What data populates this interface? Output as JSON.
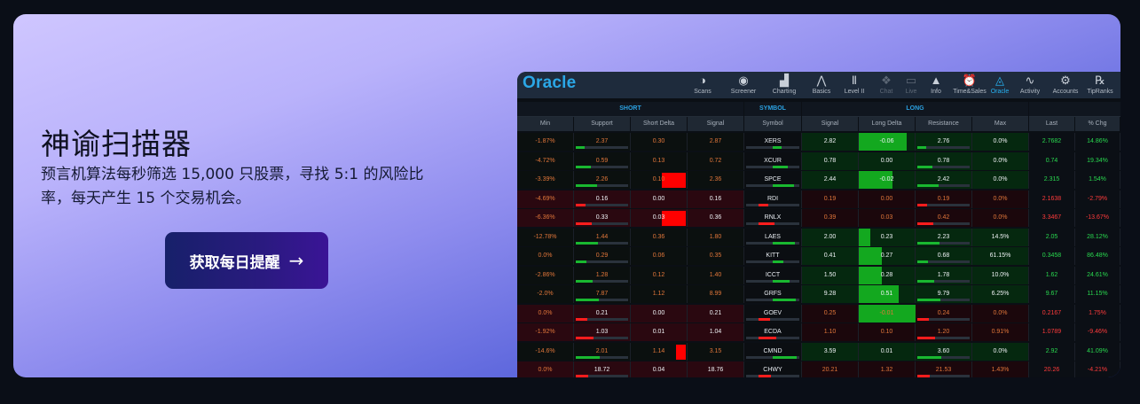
{
  "banner": {
    "title": "神谕扫描器",
    "subtitle": "预言机算法每秒筛选 15,000 只股票，寻找 5:1 的风险比率，每天产生 15 个交易机会。",
    "cta_label": "获取每日提醒",
    "cta_icon": "arrow-right-icon",
    "colors": {
      "cta_bg": "#1d1a6e",
      "accent": "#2ba7e6",
      "gain": "#29d94f",
      "loss": "#ff3b3b"
    }
  },
  "app": {
    "logo": "Oracle",
    "nav": [
      {
        "label": "Scans",
        "icon": "half-circle-icon"
      },
      {
        "label": "Screener",
        "icon": "eye-icon"
      },
      {
        "label": "Charting",
        "icon": "bar-chart-icon"
      },
      {
        "label": "Basics",
        "icon": "compass-icon"
      },
      {
        "label": "Level II",
        "icon": "level-two-icon"
      },
      {
        "label": "Chat",
        "icon": "chat-icon",
        "state": "disabled"
      },
      {
        "label": "Live",
        "icon": "live-icon",
        "state": "disabled"
      },
      {
        "label": "Info",
        "icon": "info-triangle-icon"
      },
      {
        "label": "Time&Sales",
        "icon": "clock-icon"
      },
      {
        "label": "Oracle",
        "icon": "pyramid-eye-icon",
        "state": "active"
      },
      {
        "label": "Activity",
        "icon": "pulse-icon"
      },
      {
        "label": "Accounts",
        "icon": "accounts-icon"
      },
      {
        "label": "TipRanks",
        "icon": "tipranks-icon"
      }
    ],
    "groups": {
      "short": "SHORT",
      "symbol": "SYMBOL",
      "long": "LONG"
    },
    "columns": [
      "Min",
      "Support",
      "Short Delta",
      "Signal",
      "Symbol",
      "Signal",
      "Long Delta",
      "Resistance",
      "Max",
      "Last",
      "% Chg"
    ],
    "rows": [
      {
        "trend": "pos",
        "cells": [
          "-1.87%",
          "2.37",
          "0.30",
          "2.87",
          "XERS",
          "2.82",
          "-0.06",
          "2.76",
          "0.0%",
          "2.7682",
          "14.86%"
        ],
        "long_delta_fill": 0.85
      },
      {
        "trend": "pos",
        "cells": [
          "-4.72%",
          "0.59",
          "0.13",
          "0.72",
          "XCUR",
          "0.78",
          "0.00",
          "0.78",
          "0.0%",
          "0.74",
          "19.34%"
        ]
      },
      {
        "trend": "pos",
        "cells": [
          "-3.39%",
          "2.26",
          "0.10",
          "2.36",
          "SPCE",
          "2.44",
          "-0.02",
          "2.42",
          "0.0%",
          "2.315",
          "1.54%"
        ],
        "short_delta_fill": 0.45,
        "long_delta_fill": 0.6
      },
      {
        "trend": "neg",
        "cells": [
          "-4.69%",
          "0.16",
          "0.00",
          "0.16",
          "RDI",
          "0.19",
          "0.00",
          "0.19",
          "0.0%",
          "2.1638",
          "-2.79%"
        ]
      },
      {
        "trend": "neg",
        "cells": [
          "-6.36%",
          "0.33",
          "0.03",
          "0.36",
          "RNLX",
          "0.39",
          "0.03",
          "0.42",
          "0.0%",
          "3.3467",
          "-13.67%"
        ],
        "short_delta_fill": 0.45
      },
      {
        "trend": "pos",
        "cells": [
          "-12.78%",
          "1.44",
          "0.36",
          "1.80",
          "LAES",
          "2.00",
          "0.23",
          "2.23",
          "14.5%",
          "2.05",
          "28.12%"
        ],
        "long_delta_fill": 0.2
      },
      {
        "trend": "pos",
        "cells": [
          "0.0%",
          "0.29",
          "0.06",
          "0.35",
          "KITT",
          "0.41",
          "0.27",
          "0.68",
          "61.15%",
          "0.3458",
          "86.48%"
        ],
        "long_delta_fill": 0.4
      },
      {
        "trend": "pos",
        "cells": [
          "-2.86%",
          "1.28",
          "0.12",
          "1.40",
          "ICCT",
          "1.50",
          "0.28",
          "1.78",
          "10.0%",
          "1.62",
          "24.61%"
        ],
        "long_delta_fill": 0.4
      },
      {
        "trend": "pos",
        "cells": [
          "-2.0%",
          "7.87",
          "1.12",
          "8.99",
          "GRFS",
          "9.28",
          "0.51",
          "9.79",
          "6.25%",
          "9.67",
          "11.15%"
        ],
        "long_delta_fill": 0.7
      },
      {
        "trend": "neg",
        "cells": [
          "0.0%",
          "0.21",
          "0.00",
          "0.21",
          "GOEV",
          "0.25",
          "-0.01",
          "0.24",
          "0.0%",
          "0.2167",
          "1.75%"
        ],
        "long_delta_fill": 1.0
      },
      {
        "trend": "neg",
        "cells": [
          "-1.92%",
          "1.03",
          "0.01",
          "1.04",
          "ECDA",
          "1.10",
          "0.10",
          "1.20",
          "0.91%",
          "1.0789",
          "-9.46%"
        ]
      },
      {
        "trend": "pos",
        "cells": [
          "-14.6%",
          "2.01",
          "1.14",
          "3.15",
          "CMND",
          "3.59",
          "0.01",
          "3.60",
          "0.0%",
          "2.92",
          "41.09%"
        ],
        "short_delta_fill": 0.2
      },
      {
        "trend": "neg",
        "cells": [
          "0.0%",
          "18.72",
          "0.04",
          "18.76",
          "CHWY",
          "20.21",
          "1.32",
          "21.53",
          "1.43%",
          "20.26",
          "-4.21%"
        ]
      }
    ]
  }
}
